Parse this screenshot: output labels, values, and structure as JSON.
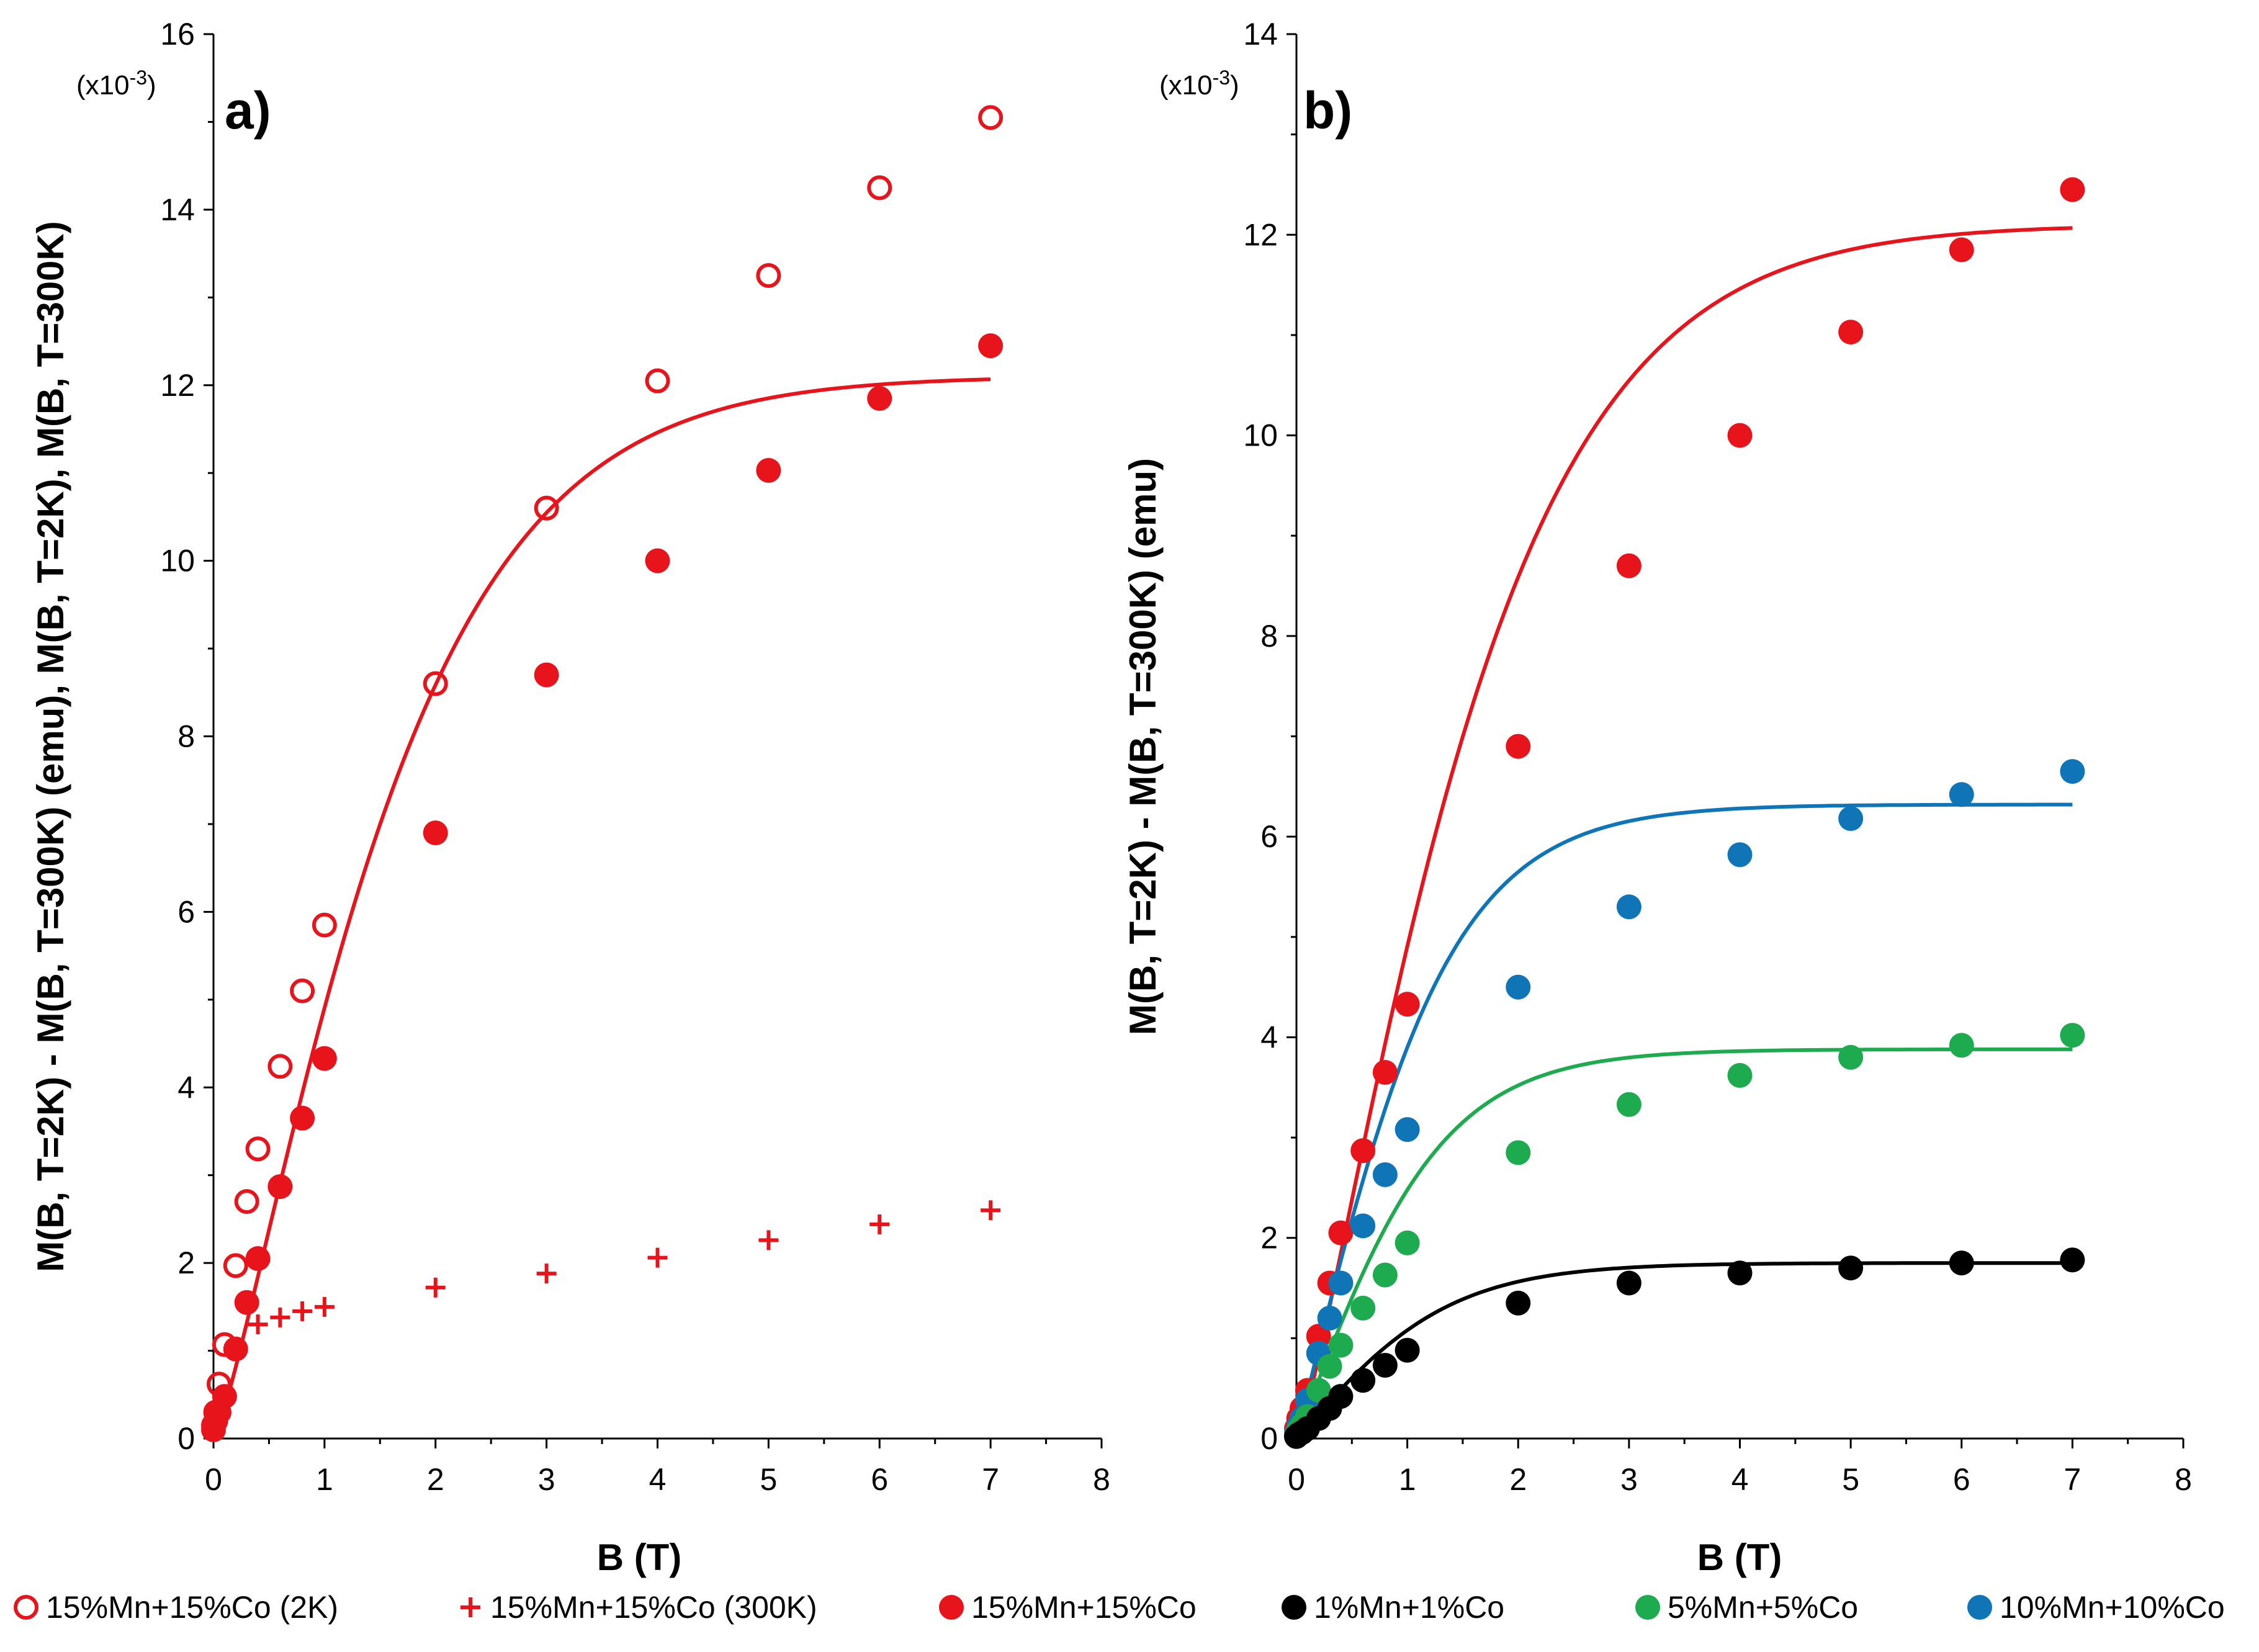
{
  "chart_data": [
    {
      "panel": "a)",
      "type": "scatter",
      "xlabel": "B (T)",
      "ylabel": "M(B, T=2K) - M(B, T=300K)  (emu), M(B, T=2K), M(B, T=300K)",
      "multiplier": "(x10-3)",
      "multiplier_base": "(x10",
      "multiplier_exp": "-3",
      "multiplier_close": ")",
      "xlim": [
        0,
        8
      ],
      "ylim": [
        0,
        16
      ],
      "xticks": [
        "0",
        "1",
        "2",
        "3",
        "4",
        "5",
        "6",
        "7",
        "8"
      ],
      "yticks": [
        "0",
        "2",
        "4",
        "6",
        "8",
        "10",
        "12",
        "14",
        "16"
      ],
      "series": [
        {
          "name": "15%Mn+15%Co (2K)",
          "marker": "open-circle",
          "color": "#e8141b",
          "x": [
            0,
            0.02,
            0.05,
            0.1,
            0.2,
            0.3,
            0.4,
            0.6,
            0.8,
            1,
            2,
            3,
            4,
            5,
            6,
            7
          ],
          "y": [
            0.15,
            0.3,
            0.62,
            1.07,
            1.97,
            2.7,
            3.3,
            4.24,
            5.1,
            5.85,
            8.6,
            10.6,
            12.05,
            13.25,
            14.25,
            15.05
          ]
        },
        {
          "name": "15%Mn+15%Co (300K)",
          "marker": "plus",
          "color": "#e8141b",
          "x": [
            0.4,
            0.6,
            0.8,
            1,
            2,
            3,
            4,
            5,
            6,
            7
          ],
          "y": [
            1.3,
            1.38,
            1.45,
            1.5,
            1.72,
            1.88,
            2.06,
            2.26,
            2.44,
            2.6
          ]
        },
        {
          "name": "15%Mn+15%Co",
          "marker": "filled-circle",
          "color": "#e8141b",
          "x": [
            0,
            0.02,
            0.05,
            0.1,
            0.2,
            0.3,
            0.4,
            0.6,
            0.8,
            1,
            2,
            3,
            4,
            5,
            6,
            7
          ],
          "y": [
            0.1,
            0.2,
            0.3,
            0.48,
            1.02,
            1.55,
            2.05,
            2.87,
            3.65,
            4.33,
            6.9,
            8.7,
            10.0,
            11.03,
            11.85,
            12.45
          ]
        }
      ],
      "fits": [
        {
          "name": "fit 15%Mn+15%Co",
          "color": "#e8141b",
          "A": 12.1,
          "k": 0.58,
          "xmax": 7
        }
      ]
    },
    {
      "panel": "b)",
      "type": "scatter",
      "xlabel": "B (T)",
      "ylabel": "M(B, T=2K) - M(B, T=300K)  (emu)",
      "multiplier": "(x10-3)",
      "multiplier_base": "(x10",
      "multiplier_exp": "-3",
      "multiplier_close": ")",
      "xlim": [
        0,
        8
      ],
      "ylim": [
        0,
        14
      ],
      "xticks": [
        "0",
        "1",
        "2",
        "3",
        "4",
        "5",
        "6",
        "7",
        "8"
      ],
      "yticks": [
        "0",
        "2",
        "4",
        "6",
        "8",
        "10",
        "12",
        "14"
      ],
      "series": [
        {
          "name": "15%Mn+15%Co",
          "marker": "filled-circle",
          "color": "#e8141b",
          "x": [
            0,
            0.02,
            0.05,
            0.1,
            0.2,
            0.3,
            0.4,
            0.6,
            0.8,
            1,
            2,
            3,
            4,
            5,
            6,
            7
          ],
          "y": [
            0.1,
            0.2,
            0.3,
            0.48,
            1.02,
            1.55,
            2.05,
            2.87,
            3.65,
            4.33,
            6.9,
            8.7,
            10.0,
            11.03,
            11.85,
            12.45
          ]
        },
        {
          "name": "10%Mn+10%Co",
          "marker": "filled-circle",
          "color": "#0f75b7",
          "x": [
            0,
            0.02,
            0.05,
            0.1,
            0.2,
            0.3,
            0.4,
            0.6,
            0.8,
            1,
            2,
            3,
            4,
            5,
            6,
            7
          ],
          "y": [
            0.05,
            0.12,
            0.2,
            0.38,
            0.85,
            1.2,
            1.55,
            2.12,
            2.63,
            3.08,
            4.5,
            5.3,
            5.82,
            6.18,
            6.42,
            6.65
          ]
        },
        {
          "name": "5%Mn+5%Co",
          "marker": "filled-circle",
          "color": "#1eaa4f",
          "x": [
            0,
            0.02,
            0.05,
            0.1,
            0.2,
            0.3,
            0.4,
            0.6,
            0.8,
            1,
            2,
            3,
            4,
            5,
            6,
            7
          ],
          "y": [
            0.03,
            0.08,
            0.13,
            0.22,
            0.48,
            0.72,
            0.93,
            1.3,
            1.63,
            1.95,
            2.85,
            3.33,
            3.62,
            3.8,
            3.92,
            4.02
          ]
        },
        {
          "name": "1%Mn+1%Co",
          "marker": "filled-circle",
          "color": "#000000",
          "x": [
            0,
            0.02,
            0.05,
            0.1,
            0.2,
            0.3,
            0.4,
            0.6,
            0.8,
            1,
            2,
            3,
            4,
            5,
            6,
            7
          ],
          "y": [
            0.02,
            0.04,
            0.06,
            0.1,
            0.2,
            0.3,
            0.42,
            0.58,
            0.73,
            0.88,
            1.35,
            1.55,
            1.65,
            1.7,
            1.75,
            1.78
          ]
        }
      ],
      "fits": [
        {
          "name": "fit 15%Mn+15%Co",
          "color": "#e8141b",
          "A": 12.1,
          "k": 0.58,
          "xmax": 7
        },
        {
          "name": "fit 10%Mn+10%Co",
          "color": "#0f75b7",
          "A": 6.32,
          "k": 1.0,
          "xmax": 7
        },
        {
          "name": "fit 5%Mn+5%Co",
          "color": "#1eaa4f",
          "A": 3.88,
          "k": 1.05,
          "xmax": 7
        },
        {
          "name": "fit 1%Mn+1%Co",
          "color": "#000000",
          "A": 1.75,
          "k": 1.0,
          "xmax": 7
        }
      ]
    }
  ],
  "legend": [
    {
      "label": "15%Mn+15%Co (2K)",
      "marker": "open-circle",
      "color": "#e8141b"
    },
    {
      "label": "15%Mn+15%Co (300K)",
      "marker": "plus",
      "color": "#e8141b"
    },
    {
      "label": "15%Mn+15%Co",
      "marker": "filled-circle",
      "color": "#e8141b"
    },
    {
      "label": "1%Mn+1%Co",
      "marker": "filled-circle",
      "color": "#000000"
    },
    {
      "label": "5%Mn+5%Co",
      "marker": "filled-circle",
      "color": "#1eaa4f"
    },
    {
      "label": "10%Mn+10%Co",
      "marker": "filled-circle",
      "color": "#0f75b7"
    }
  ]
}
